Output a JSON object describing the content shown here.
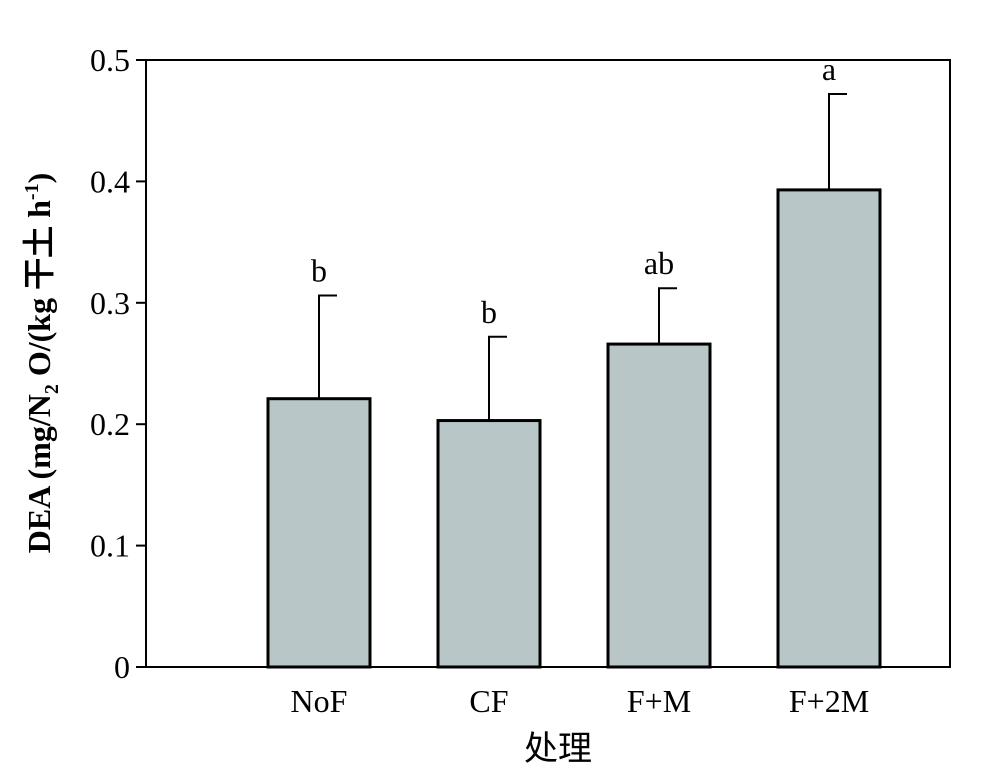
{
  "chart_data": {
    "type": "bar",
    "title": "",
    "xlabel": "处理",
    "ylabel": {
      "prefix": "DEA (mg/N",
      "subscript": "2",
      "middle": " O/(kg 干土 h",
      "superscript": "-1",
      "suffix": ")"
    },
    "categories": [
      "NoF",
      "CF",
      "F+M",
      "F+2M"
    ],
    "values": [
      0.221,
      0.203,
      0.266,
      0.393
    ],
    "errors": [
      0.085,
      0.069,
      0.046,
      0.079
    ],
    "letters": [
      "b",
      "b",
      "ab",
      "a"
    ],
    "ylim": [
      0,
      0.5
    ],
    "yticks": [
      0,
      0.1,
      0.2,
      0.3,
      0.4,
      0.5
    ],
    "ytick_labels": [
      "0",
      "0.1",
      "0.2",
      "0.3",
      "0.4",
      "0.5"
    ],
    "grid": false,
    "legend": "none",
    "bar_color": "#b8c6c7",
    "edge_color": "#000000"
  }
}
